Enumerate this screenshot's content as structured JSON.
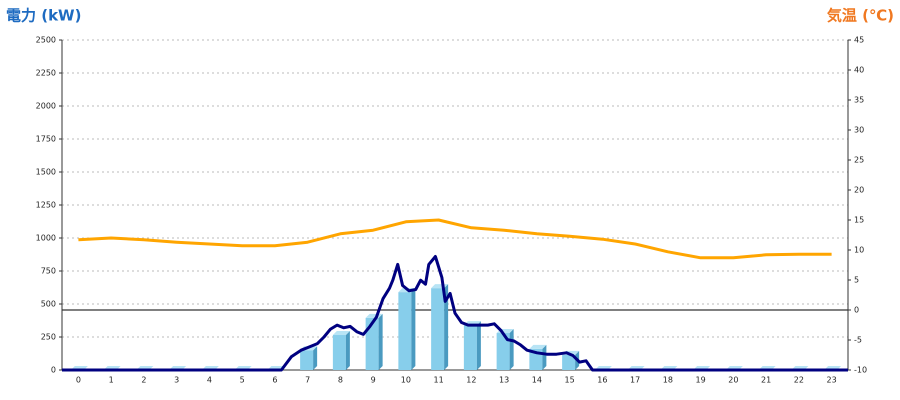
{
  "chart_data": {
    "type": "bar",
    "y_label": "電力 (kW)",
    "y2_label": "気温 (℃)",
    "categories": [
      "0",
      "1",
      "2",
      "3",
      "4",
      "5",
      "6",
      "7",
      "8",
      "9",
      "10",
      "11",
      "12",
      "13",
      "14",
      "15",
      "16",
      "17",
      "18",
      "19",
      "20",
      "21",
      "22",
      "23"
    ],
    "series": [
      {
        "type": "bar",
        "color": "#87ceeb",
        "values": [
          0,
          0,
          0,
          0,
          0,
          0,
          0,
          150,
          265,
          395,
          590,
          620,
          340,
          280,
          160,
          115,
          0,
          0,
          0,
          0,
          0,
          0,
          0,
          0
        ]
      },
      {
        "type": "line",
        "color": "#000080",
        "x": [
          -0.5,
          6.2,
          6.5,
          6.8,
          7.0,
          7.3,
          7.5,
          7.7,
          7.9,
          8.1,
          8.3,
          8.5,
          8.7,
          8.9,
          9.1,
          9.3,
          9.5,
          9.6,
          9.75,
          9.9,
          10.1,
          10.3,
          10.45,
          10.6,
          10.7,
          10.9,
          11.1,
          11.2,
          11.35,
          11.5,
          11.7,
          11.9,
          12.2,
          12.5,
          12.7,
          12.9,
          13.1,
          13.3,
          13.5,
          13.7,
          14.0,
          14.3,
          14.6,
          14.9,
          15.1,
          15.3,
          15.5,
          15.7,
          23.5
        ],
        "values": [
          0,
          0,
          100,
          150,
          170,
          200,
          250,
          310,
          340,
          320,
          330,
          290,
          270,
          330,
          400,
          540,
          620,
          680,
          800,
          640,
          600,
          610,
          680,
          650,
          800,
          860,
          700,
          520,
          580,
          430,
          360,
          340,
          340,
          340,
          350,
          300,
          230,
          220,
          190,
          150,
          130,
          120,
          120,
          130,
          110,
          60,
          70,
          0,
          0
        ]
      },
      {
        "type": "line",
        "axis": "y2",
        "color": "#ffa500",
        "values": [
          11.7,
          12,
          11.7,
          11.3,
          11,
          10.7,
          10.7,
          11.3,
          12.7,
          13.3,
          14.7,
          15,
          13.7,
          13.3,
          12.7,
          12.3,
          11.8,
          11,
          9.7,
          8.7,
          8.7,
          9.2,
          9.3,
          9.3
        ]
      }
    ],
    "ylim": [
      0,
      2500
    ],
    "yticks": [
      0,
      250,
      500,
      750,
      1000,
      1250,
      1500,
      1750,
      2000,
      2250,
      2500
    ],
    "y2lim": [
      -10,
      45
    ],
    "y2ticks": [
      -10,
      -5,
      0,
      5,
      10,
      15,
      20,
      25,
      30,
      35,
      40,
      45
    ],
    "grid": true
  }
}
